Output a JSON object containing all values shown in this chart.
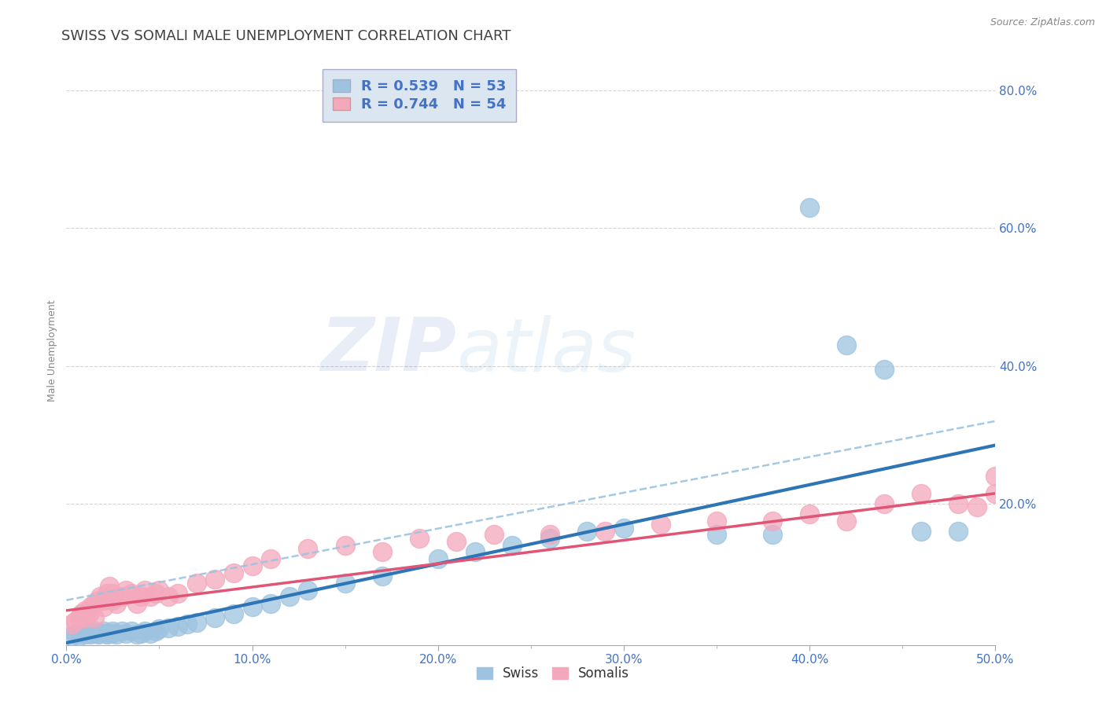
{
  "title": "SWISS VS SOMALI MALE UNEMPLOYMENT CORRELATION CHART",
  "source": "Source: ZipAtlas.com",
  "xlabel": "",
  "ylabel": "Male Unemployment",
  "xlim": [
    0.0,
    0.5
  ],
  "ylim": [
    -0.005,
    0.85
  ],
  "ytick_labels": [
    "20.0%",
    "40.0%",
    "60.0%",
    "80.0%"
  ],
  "ytick_values": [
    0.2,
    0.4,
    0.6,
    0.8
  ],
  "xtick_labels": [
    "0.0%",
    "10.0%",
    "20.0%",
    "30.0%",
    "40.0%",
    "50.0%"
  ],
  "xtick_values": [
    0.0,
    0.1,
    0.2,
    0.3,
    0.4,
    0.5
  ],
  "swiss_R": 0.539,
  "swiss_N": 53,
  "somali_R": 0.744,
  "somali_N": 54,
  "swiss_color": "#9dc3e0",
  "somali_color": "#f4a8bc",
  "swiss_line_color": "#2e75b6",
  "somali_line_color": "#e05575",
  "dashed_line_color": "#9dc3e0",
  "title_color": "#404040",
  "axis_label_color": "#4472c4",
  "tick_color": "#4472c4",
  "background_color": "#ffffff",
  "grid_color": "#d0d0d0",
  "legend_box_color": "#dce6f1",
  "swiss_x": [
    0.003,
    0.005,
    0.007,
    0.008,
    0.01,
    0.01,
    0.012,
    0.013,
    0.015,
    0.015,
    0.017,
    0.018,
    0.02,
    0.02,
    0.022,
    0.023,
    0.025,
    0.025,
    0.027,
    0.03,
    0.032,
    0.035,
    0.038,
    0.04,
    0.042,
    0.045,
    0.048,
    0.05,
    0.055,
    0.06,
    0.065,
    0.07,
    0.08,
    0.09,
    0.1,
    0.11,
    0.12,
    0.13,
    0.15,
    0.17,
    0.2,
    0.22,
    0.24,
    0.26,
    0.28,
    0.3,
    0.35,
    0.38,
    0.4,
    0.42,
    0.44,
    0.46,
    0.48
  ],
  "swiss_y": [
    0.008,
    0.01,
    0.008,
    0.012,
    0.01,
    0.015,
    0.012,
    0.01,
    0.012,
    0.015,
    0.01,
    0.012,
    0.012,
    0.015,
    0.01,
    0.012,
    0.015,
    0.012,
    0.01,
    0.015,
    0.012,
    0.015,
    0.01,
    0.012,
    0.015,
    0.012,
    0.015,
    0.018,
    0.02,
    0.022,
    0.025,
    0.028,
    0.035,
    0.04,
    0.05,
    0.055,
    0.065,
    0.075,
    0.085,
    0.095,
    0.12,
    0.13,
    0.14,
    0.15,
    0.16,
    0.165,
    0.155,
    0.155,
    0.63,
    0.43,
    0.395,
    0.16,
    0.16
  ],
  "somali_x": [
    0.003,
    0.005,
    0.007,
    0.008,
    0.01,
    0.01,
    0.012,
    0.013,
    0.015,
    0.015,
    0.017,
    0.018,
    0.02,
    0.02,
    0.022,
    0.023,
    0.025,
    0.025,
    0.027,
    0.03,
    0.032,
    0.035,
    0.038,
    0.04,
    0.042,
    0.045,
    0.048,
    0.05,
    0.055,
    0.06,
    0.07,
    0.08,
    0.09,
    0.1,
    0.11,
    0.13,
    0.15,
    0.17,
    0.19,
    0.21,
    0.23,
    0.26,
    0.29,
    0.32,
    0.35,
    0.38,
    0.4,
    0.42,
    0.44,
    0.46,
    0.48,
    0.49,
    0.5,
    0.5
  ],
  "somali_y": [
    0.025,
    0.03,
    0.035,
    0.04,
    0.035,
    0.045,
    0.04,
    0.05,
    0.055,
    0.035,
    0.06,
    0.065,
    0.05,
    0.06,
    0.07,
    0.08,
    0.07,
    0.06,
    0.055,
    0.065,
    0.075,
    0.07,
    0.055,
    0.065,
    0.075,
    0.065,
    0.07,
    0.075,
    0.065,
    0.07,
    0.085,
    0.09,
    0.1,
    0.11,
    0.12,
    0.135,
    0.14,
    0.13,
    0.15,
    0.145,
    0.155,
    0.155,
    0.16,
    0.17,
    0.175,
    0.175,
    0.185,
    0.175,
    0.2,
    0.215,
    0.2,
    0.195,
    0.215,
    0.24
  ],
  "swiss_line_x0": 0.0,
  "swiss_line_y0": -0.002,
  "swiss_line_x1": 0.5,
  "swiss_line_y1": 0.285,
  "dashed_line_x0": 0.0,
  "dashed_line_y0": 0.06,
  "dashed_line_x1": 0.5,
  "dashed_line_y1": 0.32,
  "somali_line_x0": 0.0,
  "somali_line_y0": 0.045,
  "somali_line_x1": 0.5,
  "somali_line_y1": 0.215,
  "watermark_zip": "ZIP",
  "watermark_atlas": "atlas",
  "title_fontsize": 13,
  "axis_fontsize": 9,
  "tick_fontsize": 11,
  "legend_fontsize": 13
}
